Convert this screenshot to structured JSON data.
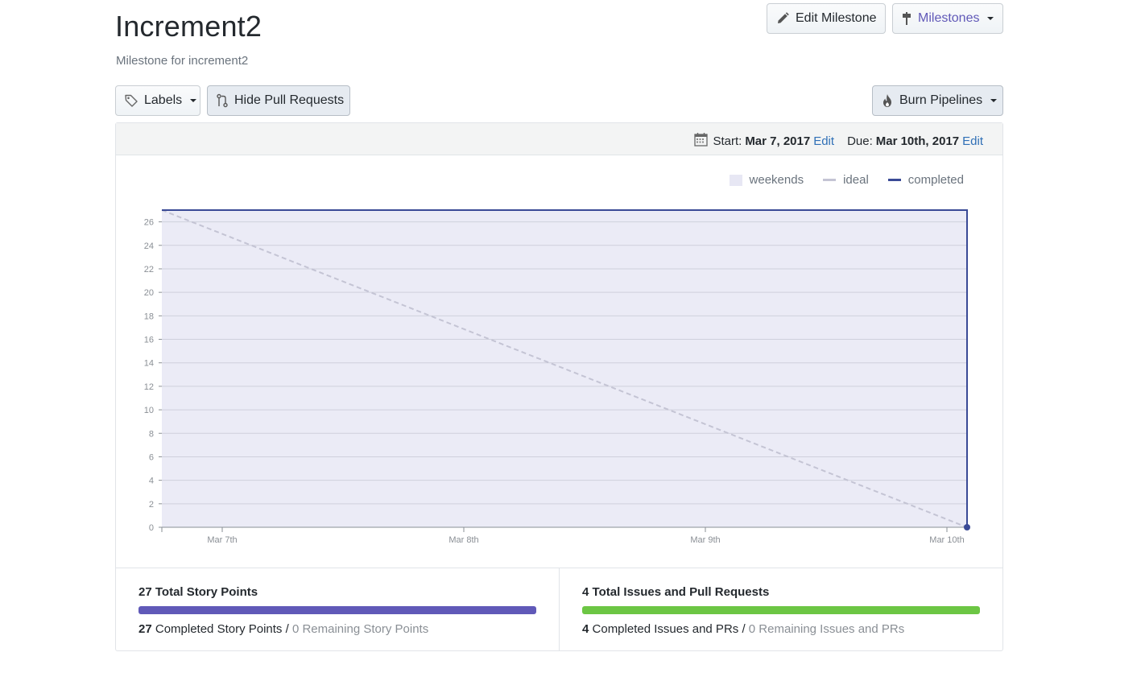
{
  "milestone": {
    "title": "Increment2",
    "description": "Milestone for increment2"
  },
  "toolbar": {
    "edit_milestone": "Edit Milestone",
    "milestones": "Milestones",
    "labels": "Labels",
    "hide_pull_requests": "Hide Pull Requests",
    "burn_pipelines": "Burn Pipelines"
  },
  "dates": {
    "start_label": "Start:",
    "start_value": "Mar 7, 2017",
    "due_label": "Due:",
    "due_value": "Mar 10th, 2017",
    "edit": "Edit"
  },
  "legend": {
    "weekends": "weekends",
    "ideal": "ideal",
    "completed": "completed"
  },
  "colors": {
    "accent_purple": "#5a4fb0",
    "milestones_text": "#6159b8",
    "completed_line": "#3a4a96",
    "ideal_line": "#c4c4d4",
    "plot_bg": "#ebebf6",
    "story_bar": "#6059b8",
    "issues_bar": "#6cc644",
    "link": "#2f6fb6"
  },
  "chart_data": {
    "type": "line",
    "x": [
      "Mar 7th",
      "Mar 8th",
      "Mar 9th",
      "Mar 10th"
    ],
    "ylim": [
      0,
      27
    ],
    "yticks": [
      0,
      2,
      4,
      6,
      8,
      10,
      12,
      14,
      16,
      18,
      20,
      22,
      24,
      26
    ],
    "grid": true,
    "legend_position": "top-right",
    "series": [
      {
        "name": "ideal",
        "style": "dashed",
        "points": [
          [
            "Mar 7",
            27
          ],
          [
            "Mar 10",
            0
          ]
        ]
      },
      {
        "name": "completed",
        "style": "solid",
        "points": [
          [
            "Mar 7",
            27
          ],
          [
            "Mar 10",
            27
          ],
          [
            "Mar 10",
            0
          ]
        ]
      }
    ]
  },
  "stats": {
    "story": {
      "total": "27",
      "total_label": "Total Story Points",
      "completed": "27",
      "completed_label": "Completed Story Points",
      "separator": "/",
      "remaining": "0 Remaining Story Points",
      "progress": 1.0
    },
    "issues": {
      "total": "4",
      "total_label": "Total Issues and Pull Requests",
      "completed": "4",
      "completed_label": "Completed Issues and PRs",
      "separator": "/",
      "remaining": "0 Remaining Issues and PRs",
      "progress": 1.0
    }
  }
}
